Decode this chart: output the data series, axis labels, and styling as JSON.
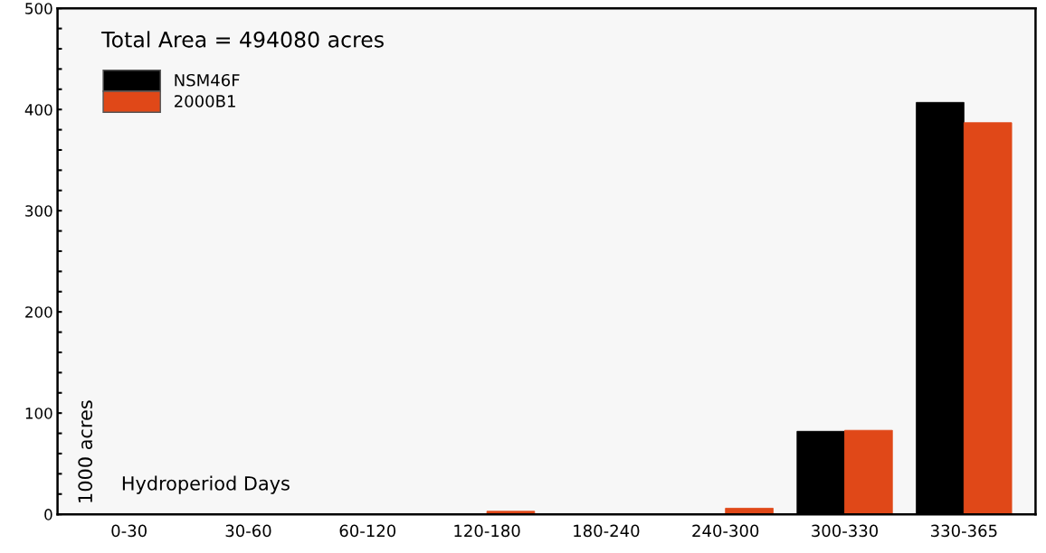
{
  "chart_data": {
    "type": "bar",
    "xlabel": "Hydroperiod Days",
    "ylabel": "1000 acres",
    "annotations": [
      "Total Area = 494080 acres"
    ],
    "categories": [
      "0-30",
      "30-60",
      "60-120",
      "120-180",
      "180-240",
      "240-300",
      "300-330",
      "330-365"
    ],
    "series": [
      {
        "name": "NSM46F",
        "color": "#000000",
        "values": [
          0,
          0,
          0,
          0,
          0,
          0,
          82,
          407
        ]
      },
      {
        "name": "2000B1",
        "color": "#e04818",
        "values": [
          0,
          0,
          0,
          3,
          0,
          6,
          83,
          387
        ]
      }
    ],
    "ylim": [
      0,
      500
    ],
    "yticks": [
      0,
      {
        "value": 20,
        "label": null
      },
      {
        "value": 40,
        "label": null
      },
      {
        "value": 60,
        "label": null
      },
      {
        "value": 80,
        "label": null
      },
      100,
      {
        "value": 120,
        "label": null
      },
      {
        "value": 140,
        "label": null
      },
      {
        "value": 160,
        "label": null
      },
      {
        "value": 180,
        "label": null
      },
      200,
      {
        "value": 220,
        "label": null
      },
      {
        "value": 240,
        "label": null
      },
      {
        "value": 260,
        "label": null
      },
      {
        "value": 280,
        "label": null
      },
      300,
      {
        "value": 320,
        "label": null
      },
      {
        "value": 340,
        "label": null
      },
      {
        "value": 360,
        "label": null
      },
      {
        "value": 380,
        "label": null
      },
      400,
      {
        "value": 420,
        "label": null
      },
      {
        "value": 440,
        "label": null
      },
      {
        "value": 460,
        "label": null
      },
      {
        "value": 480,
        "label": null
      },
      500
    ],
    "grid": false,
    "legend": "top left"
  }
}
